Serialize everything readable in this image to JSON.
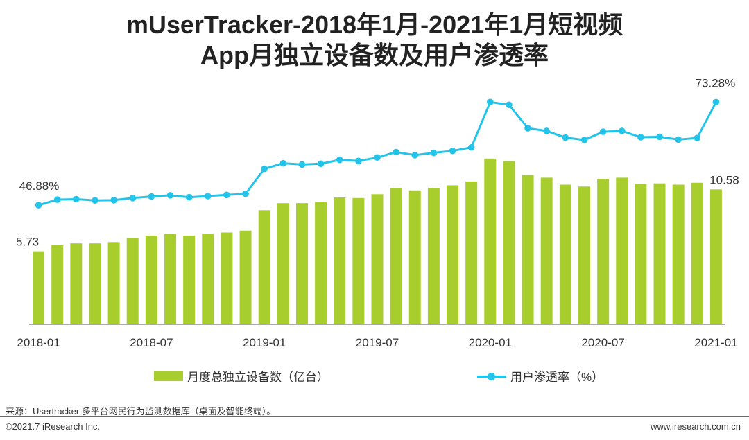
{
  "colors": {
    "bar": "#A8CE2E",
    "line": "#22C4EA",
    "axis": "#777777",
    "text": "#333333"
  },
  "chart_data": {
    "type": "bar+line",
    "title": [
      "mUserTracker-2018年1月-2021年1月短视频",
      "App月独立设备数及用户渗透率"
    ],
    "categories": [
      "2018-01",
      "2018-02",
      "2018-03",
      "2018-04",
      "2018-05",
      "2018-06",
      "2018-07",
      "2018-08",
      "2018-09",
      "2018-10",
      "2018-11",
      "2018-12",
      "2019-01",
      "2019-02",
      "2019-03",
      "2019-04",
      "2019-05",
      "2019-06",
      "2019-07",
      "2019-08",
      "2019-09",
      "2019-10",
      "2019-11",
      "2019-12",
      "2020-01",
      "2020-02",
      "2020-03",
      "2020-04",
      "2020-05",
      "2020-06",
      "2020-07",
      "2020-08",
      "2020-09",
      "2020-10",
      "2020-11",
      "2020-12",
      "2021-01"
    ],
    "x_tick_labels": [
      {
        "index": 0,
        "label": "2018-01"
      },
      {
        "index": 6,
        "label": "2018-07"
      },
      {
        "index": 12,
        "label": "2019-01"
      },
      {
        "index": 18,
        "label": "2019-07"
      },
      {
        "index": 24,
        "label": "2020-01"
      },
      {
        "index": 30,
        "label": "2020-07"
      },
      {
        "index": 36,
        "label": "2021-01"
      }
    ],
    "series": [
      {
        "name": "月度总独立设备数（亿台）",
        "type": "bar",
        "values": [
          5.73,
          6.2,
          6.35,
          6.35,
          6.45,
          6.75,
          6.95,
          7.1,
          6.95,
          7.1,
          7.2,
          7.35,
          8.95,
          9.5,
          9.5,
          9.6,
          9.95,
          9.9,
          10.2,
          10.7,
          10.5,
          10.7,
          10.9,
          11.2,
          13.0,
          12.8,
          11.7,
          11.5,
          10.95,
          10.8,
          11.4,
          11.5,
          11.0,
          11.05,
          10.95,
          11.1,
          10.58
        ],
        "data_labels": [
          {
            "index": 0,
            "label": "5.73"
          },
          {
            "index": 36,
            "label": "10.58"
          }
        ]
      },
      {
        "name": "用户渗透率（%）",
        "type": "line",
        "values": [
          46.88,
          48.3,
          48.4,
          48.1,
          48.15,
          48.7,
          49.1,
          49.4,
          48.9,
          49.2,
          49.5,
          49.8,
          56.2,
          57.6,
          57.3,
          57.5,
          58.5,
          58.2,
          59.1,
          60.5,
          59.7,
          60.3,
          60.8,
          61.7,
          73.3,
          72.6,
          66.6,
          65.9,
          64.2,
          63.6,
          65.7,
          65.9,
          64.3,
          64.4,
          63.7,
          64.1,
          73.28
        ],
        "data_labels": [
          {
            "index": 0,
            "label": "46.88%"
          },
          {
            "index": 36,
            "label": "73.28%"
          }
        ]
      }
    ],
    "legend_position": "bottom"
  },
  "footer": {
    "source": "来源：Usertracker 多平台网民行为监测数据库（桌面及智能终端）。",
    "copyright": "©2021.7 iResearch Inc.",
    "website": "www.iresearch.com.cn"
  }
}
